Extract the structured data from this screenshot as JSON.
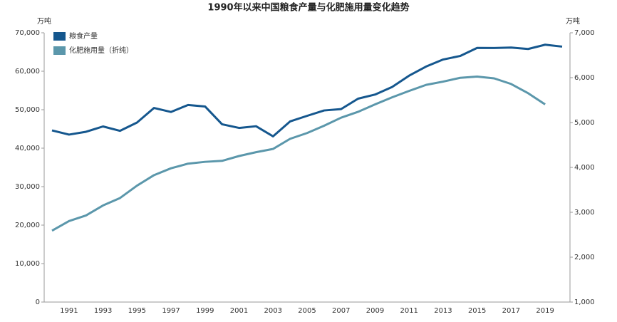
{
  "chart_data": {
    "type": "line",
    "title": "1990年以来中国粮食产量与化肥施用量变化趋势",
    "y_label": "万吨",
    "y2_label": "万吨",
    "categories": [
      null,
      "1991",
      null,
      "1993",
      null,
      "1995",
      null,
      "1997",
      null,
      "1999",
      null,
      "2001",
      null,
      "2003",
      null,
      "2005",
      null,
      "2007",
      null,
      "2009",
      null,
      "2011",
      null,
      "2013",
      null,
      "2015",
      null,
      "2017",
      null,
      "2019",
      null
    ],
    "series": [
      {
        "name": "粮食产量",
        "color": "#15578e",
        "values": [
          44624,
          43529,
          44266,
          45649,
          44510,
          46662,
          50454,
          49417,
          51230,
          50839,
          46218,
          45264,
          45706,
          43070,
          46947,
          48402,
          49804,
          50160,
          52871,
          53941,
          55911,
          58849,
          61223,
          63048,
          63965,
          66060,
          66044,
          66161,
          65789,
          66900,
          66400
        ]
      },
      {
        "name": "化肥施用量（折纯）",
        "color": "#5b97ab",
        "axis": "y2",
        "values": [
          2590,
          2805,
          2930,
          3152,
          3318,
          3594,
          3828,
          3981,
          4084,
          4124,
          4146,
          4254,
          4339,
          4412,
          4637,
          4766,
          4928,
          5108,
          5239,
          5404,
          5562,
          5704,
          5839,
          5912,
          5996,
          6023,
          5984,
          5859,
          5653,
          5404,
          null
        ]
      }
    ],
    "ylim": [
      0,
      70000
    ],
    "yticks": [
      0,
      {
        "value": 10000,
        "label": "10,000"
      },
      {
        "value": 20000,
        "label": "20,000"
      },
      {
        "value": 30000,
        "label": "30,000"
      },
      {
        "value": 40000,
        "label": "40,000"
      },
      {
        "value": 50000,
        "label": "50,000"
      },
      {
        "value": 60000,
        "label": "60,000"
      },
      {
        "value": 70000,
        "label": "70,000"
      }
    ],
    "y2lim": [
      1000,
      7000
    ],
    "y2ticks": [
      {
        "value": 1000,
        "label": "1,000"
      },
      {
        "value": 2000,
        "label": "2,000"
      },
      {
        "value": 3000,
        "label": "3,000"
      },
      {
        "value": 4000,
        "label": "4,000"
      },
      {
        "value": 5000,
        "label": "5,000"
      },
      {
        "value": 6000,
        "label": "6,000"
      },
      {
        "value": 7000,
        "label": "7,000"
      }
    ],
    "legend": "top-left",
    "grid": false
  }
}
